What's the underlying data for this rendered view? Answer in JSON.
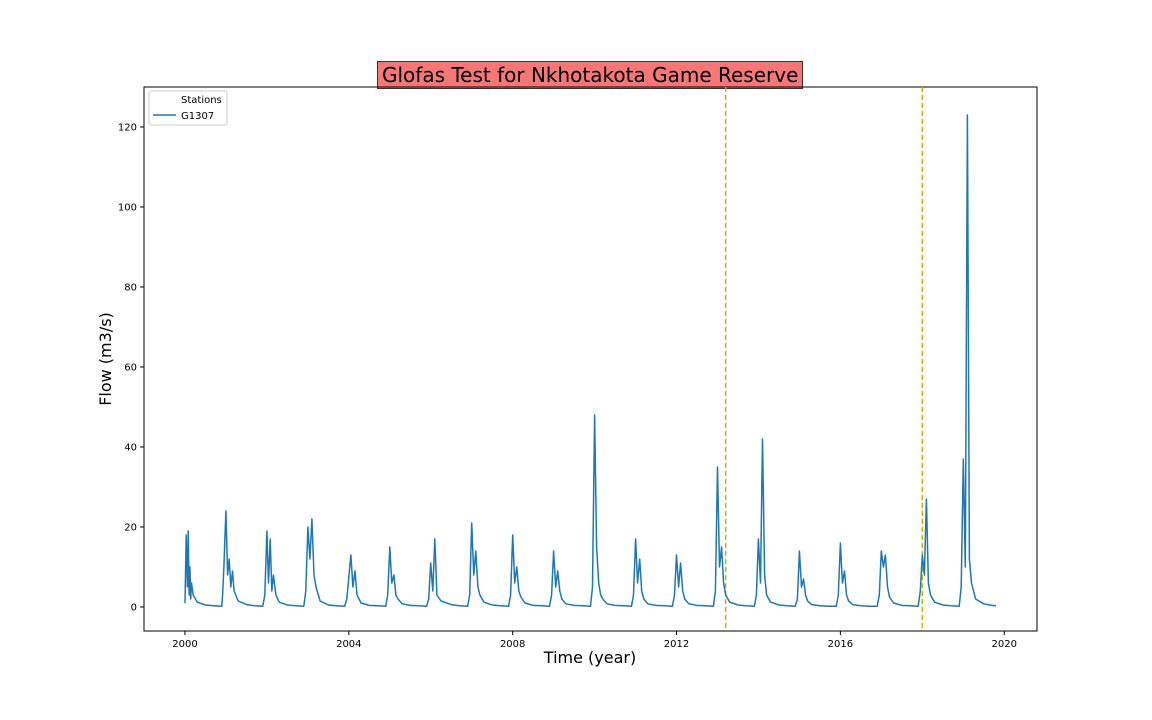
{
  "chart_data": {
    "type": "line",
    "title": "Glofas Test for Nkhotakota Game Reserve",
    "xlabel": "Time (year)",
    "ylabel": "Flow (m3/s)",
    "xlim": [
      1999.0,
      2020.8
    ],
    "ylim": [
      -6,
      130
    ],
    "xticks": [
      2000,
      2004,
      2008,
      2012,
      2016,
      2020
    ],
    "yticks": [
      0,
      20,
      40,
      60,
      80,
      100,
      120
    ],
    "legend": {
      "title": "Stations",
      "placement": "top-left"
    },
    "title_background": "#f77777",
    "series": [
      {
        "name": "G1307",
        "color": "#1f77b4",
        "x": [
          2000.0,
          2000.03,
          2000.06,
          2000.08,
          2000.1,
          2000.12,
          2000.14,
          2000.16,
          2000.2,
          2000.3,
          2000.5,
          2000.7,
          2000.9,
          2000.92,
          2000.95,
          2001.0,
          2001.04,
          2001.08,
          2001.12,
          2001.16,
          2001.2,
          2001.3,
          2001.5,
          2001.7,
          2001.9,
          2001.95,
          2002.0,
          2002.04,
          2002.08,
          2002.12,
          2002.16,
          2002.22,
          2002.3,
          2002.5,
          2002.7,
          2002.9,
          2002.95,
          2003.0,
          2003.05,
          2003.1,
          2003.15,
          2003.2,
          2003.3,
          2003.5,
          2003.7,
          2003.9,
          2003.95,
          2004.05,
          2004.1,
          2004.15,
          2004.2,
          2004.3,
          2004.5,
          2004.7,
          2004.9,
          2004.95,
          2005.0,
          2005.05,
          2005.1,
          2005.15,
          2005.2,
          2005.3,
          2005.5,
          2005.7,
          2005.9,
          2005.95,
          2006.0,
          2006.05,
          2006.1,
          2006.15,
          2006.25,
          2006.5,
          2006.7,
          2006.9,
          2006.95,
          2007.0,
          2007.05,
          2007.1,
          2007.15,
          2007.2,
          2007.3,
          2007.5,
          2007.7,
          2007.9,
          2007.95,
          2008.0,
          2008.05,
          2008.1,
          2008.15,
          2008.2,
          2008.3,
          2008.5,
          2008.7,
          2008.9,
          2008.95,
          2009.0,
          2009.05,
          2009.1,
          2009.15,
          2009.2,
          2009.3,
          2009.5,
          2009.7,
          2009.9,
          2009.95,
          2010.0,
          2010.05,
          2010.1,
          2010.15,
          2010.2,
          2010.3,
          2010.5,
          2010.7,
          2010.9,
          2010.95,
          2011.0,
          2011.05,
          2011.1,
          2011.15,
          2011.2,
          2011.3,
          2011.5,
          2011.7,
          2011.9,
          2011.95,
          2012.0,
          2012.05,
          2012.1,
          2012.15,
          2012.2,
          2012.3,
          2012.5,
          2012.7,
          2012.9,
          2012.95,
          2013.0,
          2013.05,
          2013.1,
          2013.15,
          2013.2,
          2013.3,
          2013.5,
          2013.7,
          2013.9,
          2013.95,
          2014.0,
          2014.05,
          2014.1,
          2014.15,
          2014.2,
          2014.3,
          2014.5,
          2014.7,
          2014.9,
          2014.95,
          2015.0,
          2015.05,
          2015.1,
          2015.15,
          2015.2,
          2015.3,
          2015.5,
          2015.7,
          2015.9,
          2015.95,
          2016.0,
          2016.05,
          2016.1,
          2016.15,
          2016.2,
          2016.3,
          2016.5,
          2016.7,
          2016.9,
          2016.95,
          2017.0,
          2017.05,
          2017.1,
          2017.15,
          2017.2,
          2017.3,
          2017.5,
          2017.7,
          2017.9,
          2017.95,
          2018.0,
          2018.05,
          2018.1,
          2018.15,
          2018.2,
          2018.3,
          2018.5,
          2018.7,
          2018.9,
          2018.95,
          2019.0,
          2019.05,
          2019.1,
          2019.15,
          2019.2,
          2019.3,
          2019.5,
          2019.7,
          2019.8
        ],
        "y": [
          1,
          18,
          5,
          19,
          3,
          10,
          2,
          6,
          3,
          1.2,
          0.5,
          0.3,
          0.2,
          3,
          10,
          24,
          8,
          12,
          5,
          9,
          4,
          1.5,
          0.6,
          0.3,
          0.2,
          3,
          19,
          6,
          17,
          4,
          8,
          3,
          1.2,
          0.5,
          0.3,
          0.2,
          4,
          20,
          12,
          22,
          8,
          5,
          1.5,
          0.5,
          0.3,
          0.2,
          2,
          13,
          5,
          9,
          3,
          1,
          0.4,
          0.3,
          0.2,
          3,
          15,
          6,
          8,
          3,
          2,
          0.8,
          0.4,
          0.3,
          0.2,
          2,
          11,
          4,
          17,
          3,
          1.5,
          0.6,
          0.3,
          0.2,
          3,
          21,
          8,
          14,
          5,
          3,
          1.2,
          0.5,
          0.3,
          0.2,
          3,
          18,
          6,
          10,
          4,
          2.5,
          1,
          0.4,
          0.3,
          0.2,
          3,
          14,
          5,
          9,
          4,
          2,
          0.8,
          0.4,
          0.3,
          0.2,
          5,
          48,
          15,
          6,
          3,
          2,
          0.8,
          0.4,
          0.3,
          0.2,
          3,
          17,
          6,
          12,
          4,
          2,
          0.8,
          0.4,
          0.3,
          0.2,
          3,
          13,
          5,
          11,
          4,
          2,
          0.8,
          0.4,
          0.3,
          0.2,
          4,
          35,
          10,
          15,
          6,
          3,
          1.2,
          0.5,
          0.3,
          0.2,
          3,
          17,
          6,
          42,
          8,
          3,
          1.2,
          0.5,
          0.3,
          0.2,
          2,
          14,
          5,
          7,
          3,
          1.5,
          0.6,
          0.3,
          0.2,
          0.2,
          3,
          16,
          6,
          9,
          3,
          1.5,
          0.6,
          0.3,
          0.2,
          0.2,
          3,
          14,
          10,
          13,
          5,
          2.5,
          1,
          0.4,
          0.3,
          0.2,
          4,
          13,
          8,
          27,
          6,
          3,
          1.2,
          0.5,
          0.3,
          0.2,
          5,
          37,
          10,
          123,
          12,
          6,
          2,
          0.8,
          0.4,
          0.3
        ]
      }
    ],
    "vlines": {
      "x": [
        2013.2,
        2018.0
      ],
      "color": "#c8b400",
      "style": "dashed"
    }
  }
}
